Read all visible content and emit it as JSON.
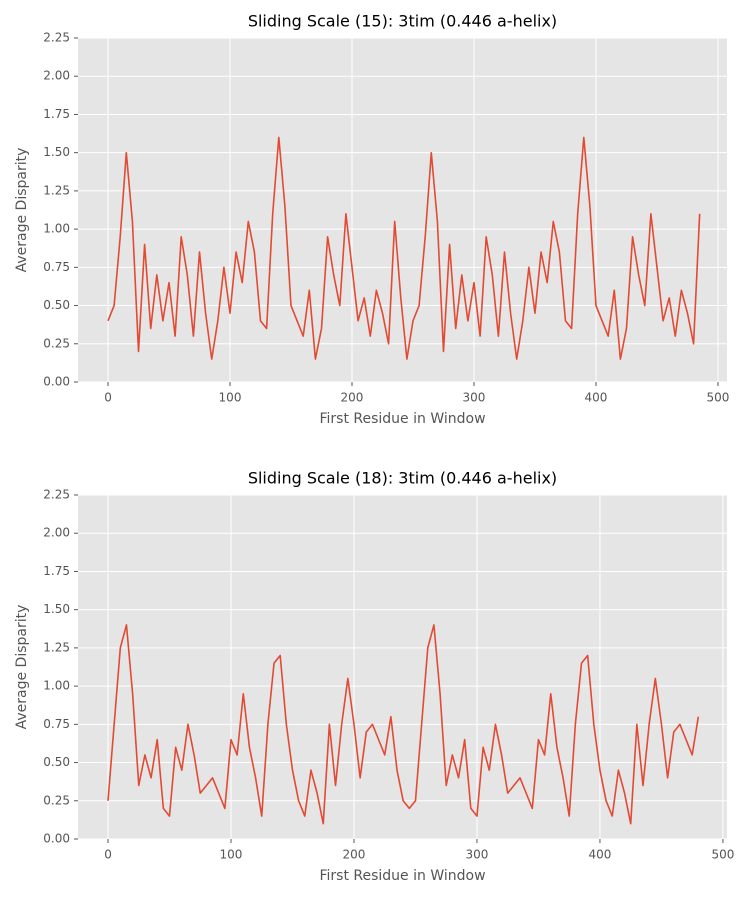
{
  "chart_data": [
    {
      "type": "line",
      "title": "Sliding Scale (15): 3tim (0.446 a-helix)",
      "xlabel": "First Residue in Window",
      "ylabel": "Average Disparity",
      "color": "#e24a33",
      "grid": true,
      "xlim": [
        -24.6,
        507.4
      ],
      "xticks": [
        0,
        100,
        200,
        300,
        400,
        500
      ],
      "ylim": [
        0,
        2.25
      ],
      "yticks": [
        {
          "value": 0,
          "label": "0.00"
        },
        {
          "value": 0.25,
          "label": "0.25"
        },
        {
          "value": 0.5,
          "label": "0.50"
        },
        {
          "value": 0.75,
          "label": "0.75"
        },
        {
          "value": 1,
          "label": "1.00"
        },
        {
          "value": 1.25,
          "label": "1.25"
        },
        {
          "value": 1.5,
          "label": "1.50"
        },
        {
          "value": 1.75,
          "label": "1.75"
        },
        {
          "value": 2,
          "label": "2.00"
        },
        {
          "value": 2.25,
          "label": "2.25"
        }
      ],
      "x": [
        0,
        5,
        10,
        15,
        20,
        25,
        30,
        35,
        40,
        45,
        50,
        55,
        60,
        65,
        70,
        75,
        80,
        85,
        90,
        95,
        100,
        105,
        110,
        115,
        120,
        125,
        130,
        135,
        140,
        145,
        150,
        155,
        160,
        165,
        170,
        175,
        180,
        185,
        190,
        195,
        200,
        205,
        210,
        215,
        220,
        225,
        230,
        235,
        240,
        245,
        250,
        255,
        260,
        265,
        270,
        275,
        280,
        285,
        290,
        295,
        300,
        305,
        310,
        315,
        320,
        325,
        330,
        335,
        340,
        345,
        350,
        355,
        360,
        365,
        370,
        375,
        380,
        385,
        390,
        395,
        400,
        405,
        410,
        415,
        420,
        425,
        430,
        435,
        440,
        445,
        450,
        455,
        460,
        465,
        470,
        475,
        480,
        485
      ],
      "values": [
        0.4,
        0.5,
        0.95,
        1.5,
        1.05,
        0.2,
        0.9,
        0.35,
        0.7,
        0.4,
        0.65,
        0.3,
        0.95,
        0.7,
        0.3,
        0.85,
        0.45,
        0.15,
        0.4,
        0.75,
        0.45,
        0.85,
        0.65,
        1.05,
        0.85,
        0.4,
        0.35,
        1.1,
        1.6,
        1.15,
        0.5,
        0.4,
        0.3,
        0.6,
        0.15,
        0.35,
        0.95,
        0.7,
        0.5,
        1.1,
        0.75,
        0.4,
        0.55,
        0.3,
        0.6,
        0.45,
        0.25,
        1.05,
        0.55,
        0.15,
        0.4,
        0.5,
        0.95,
        1.5,
        1.05,
        0.2,
        0.9,
        0.35,
        0.7,
        0.4,
        0.65,
        0.3,
        0.95,
        0.7,
        0.3,
        0.85,
        0.45,
        0.15,
        0.4,
        0.75,
        0.45,
        0.85,
        0.65,
        1.05,
        0.85,
        0.4,
        0.35,
        1.1,
        1.6,
        1.15,
        0.5,
        0.4,
        0.3,
        0.6,
        0.15,
        0.35,
        0.95,
        0.7,
        0.5,
        1.1,
        0.75,
        0.4,
        0.55,
        0.3,
        0.6,
        0.45,
        0.25,
        1.1
      ]
    },
    {
      "type": "line",
      "title": "Sliding Scale (18): 3tim (0.446 a-helix)",
      "xlabel": "First Residue in Window",
      "ylabel": "Average Disparity",
      "color": "#e24a33",
      "grid": true,
      "xlim": [
        -24.4,
        503.3
      ],
      "xticks": [
        0,
        100,
        200,
        300,
        400,
        500
      ],
      "ylim": [
        0,
        2.25
      ],
      "yticks": [
        {
          "value": 0,
          "label": "0.00"
        },
        {
          "value": 0.25,
          "label": "0.25"
        },
        {
          "value": 0.5,
          "label": "0.50"
        },
        {
          "value": 0.75,
          "label": "0.75"
        },
        {
          "value": 1,
          "label": "1.00"
        },
        {
          "value": 1.25,
          "label": "1.25"
        },
        {
          "value": 1.5,
          "label": "1.50"
        },
        {
          "value": 1.75,
          "label": "1.75"
        },
        {
          "value": 2,
          "label": "2.00"
        },
        {
          "value": 2.25,
          "label": "2.25"
        }
      ],
      "x": [
        0,
        5,
        10,
        15,
        20,
        25,
        30,
        35,
        40,
        45,
        50,
        55,
        60,
        65,
        70,
        75,
        80,
        85,
        90,
        95,
        100,
        105,
        110,
        115,
        120,
        125,
        130,
        135,
        140,
        145,
        150,
        155,
        160,
        165,
        170,
        175,
        180,
        185,
        190,
        195,
        200,
        205,
        210,
        215,
        220,
        225,
        230,
        235,
        240,
        245,
        250,
        255,
        260,
        265,
        270,
        275,
        280,
        285,
        290,
        295,
        300,
        305,
        310,
        315,
        320,
        325,
        330,
        335,
        340,
        345,
        350,
        355,
        360,
        365,
        370,
        375,
        380,
        385,
        390,
        395,
        400,
        405,
        410,
        415,
        420,
        425,
        430,
        435,
        440,
        445,
        450,
        455,
        460,
        465,
        470,
        475,
        480
      ],
      "values": [
        0.25,
        0.75,
        1.25,
        1.4,
        0.95,
        0.35,
        0.55,
        0.4,
        0.65,
        0.2,
        0.15,
        0.6,
        0.45,
        0.75,
        0.55,
        0.3,
        0.35,
        0.4,
        0.3,
        0.2,
        0.65,
        0.55,
        0.95,
        0.6,
        0.4,
        0.15,
        0.75,
        1.15,
        1.2,
        0.75,
        0.45,
        0.25,
        0.15,
        0.45,
        0.3,
        0.1,
        0.75,
        0.35,
        0.75,
        1.05,
        0.75,
        0.4,
        0.7,
        0.75,
        0.65,
        0.55,
        0.8,
        0.45,
        0.25,
        0.2,
        0.25,
        0.75,
        1.25,
        1.4,
        0.95,
        0.35,
        0.55,
        0.4,
        0.65,
        0.2,
        0.15,
        0.6,
        0.45,
        0.75,
        0.55,
        0.3,
        0.35,
        0.4,
        0.3,
        0.2,
        0.65,
        0.55,
        0.95,
        0.6,
        0.4,
        0.15,
        0.75,
        1.15,
        1.2,
        0.75,
        0.45,
        0.25,
        0.15,
        0.45,
        0.3,
        0.1,
        0.75,
        0.35,
        0.75,
        1.05,
        0.75,
        0.4,
        0.7,
        0.75,
        0.65,
        0.55,
        0.8
      ]
    }
  ]
}
